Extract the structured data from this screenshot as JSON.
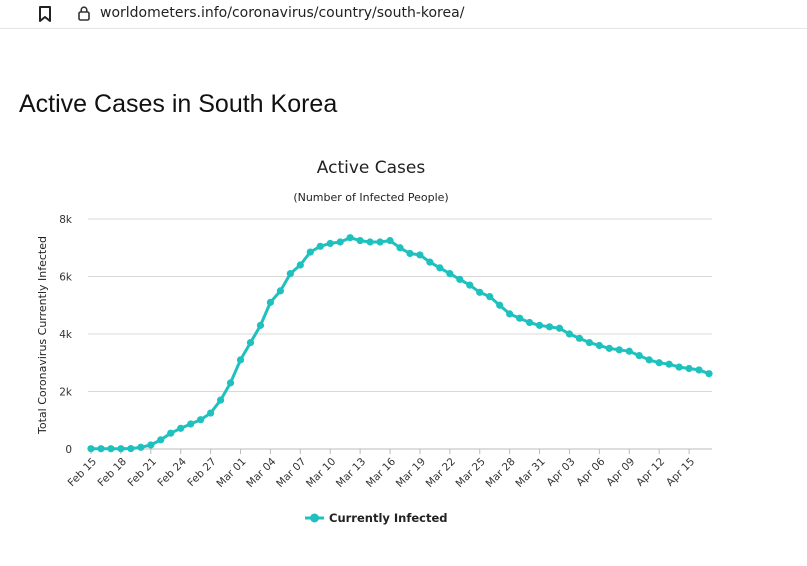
{
  "browser": {
    "url": "worldometers.info/coronavirus/country/south-korea/"
  },
  "page": {
    "heading": "Active Cases in South Korea"
  },
  "colors": {
    "series": "#1fc1bf",
    "grid": "#d8d8d8",
    "axis": "#bbbbbb"
  },
  "chart_data": {
    "type": "line",
    "title": "Active Cases",
    "subtitle": "(Number of Infected People)",
    "xlabel": "",
    "ylabel": "Total Coronavirus Currently Infected",
    "ylim": [
      0,
      8000
    ],
    "yticks": [
      {
        "value": 0,
        "label": "0"
      },
      {
        "value": 2000,
        "label": "2k"
      },
      {
        "value": 4000,
        "label": "4k"
      },
      {
        "value": 6000,
        "label": "6k"
      },
      {
        "value": 8000,
        "label": "8k"
      }
    ],
    "grid": true,
    "legend_position": "bottom-center",
    "x_tick_labels": [
      "Feb 15",
      "Feb 18",
      "Feb 21",
      "Feb 24",
      "Feb 27",
      "Mar 01",
      "Mar 04",
      "Mar 07",
      "Mar 10",
      "Mar 13",
      "Mar 16",
      "Mar 19",
      "Mar 22",
      "Mar 25",
      "Mar 28",
      "Mar 31",
      "Apr 03",
      "Apr 06",
      "Apr 09",
      "Apr 12",
      "Apr 15"
    ],
    "x_tick_every": 3,
    "series": [
      {
        "name": "Currently Infected",
        "values": [
          10,
          10,
          10,
          10,
          15,
          60,
          140,
          320,
          550,
          720,
          870,
          1020,
          1250,
          1700,
          2300,
          3100,
          3700,
          4300,
          5100,
          5500,
          6100,
          6400,
          6850,
          7050,
          7150,
          7200,
          7350,
          7250,
          7200,
          7200,
          7250,
          7000,
          6800,
          6750,
          6500,
          6300,
          6100,
          5900,
          5700,
          5450,
          5300,
          5000,
          4700,
          4550,
          4400,
          4300,
          4250,
          4200,
          4000,
          3850,
          3700,
          3600,
          3500,
          3450,
          3400,
          3250,
          3100,
          3000,
          2950,
          2850,
          2800,
          2750,
          2620
        ]
      }
    ]
  }
}
